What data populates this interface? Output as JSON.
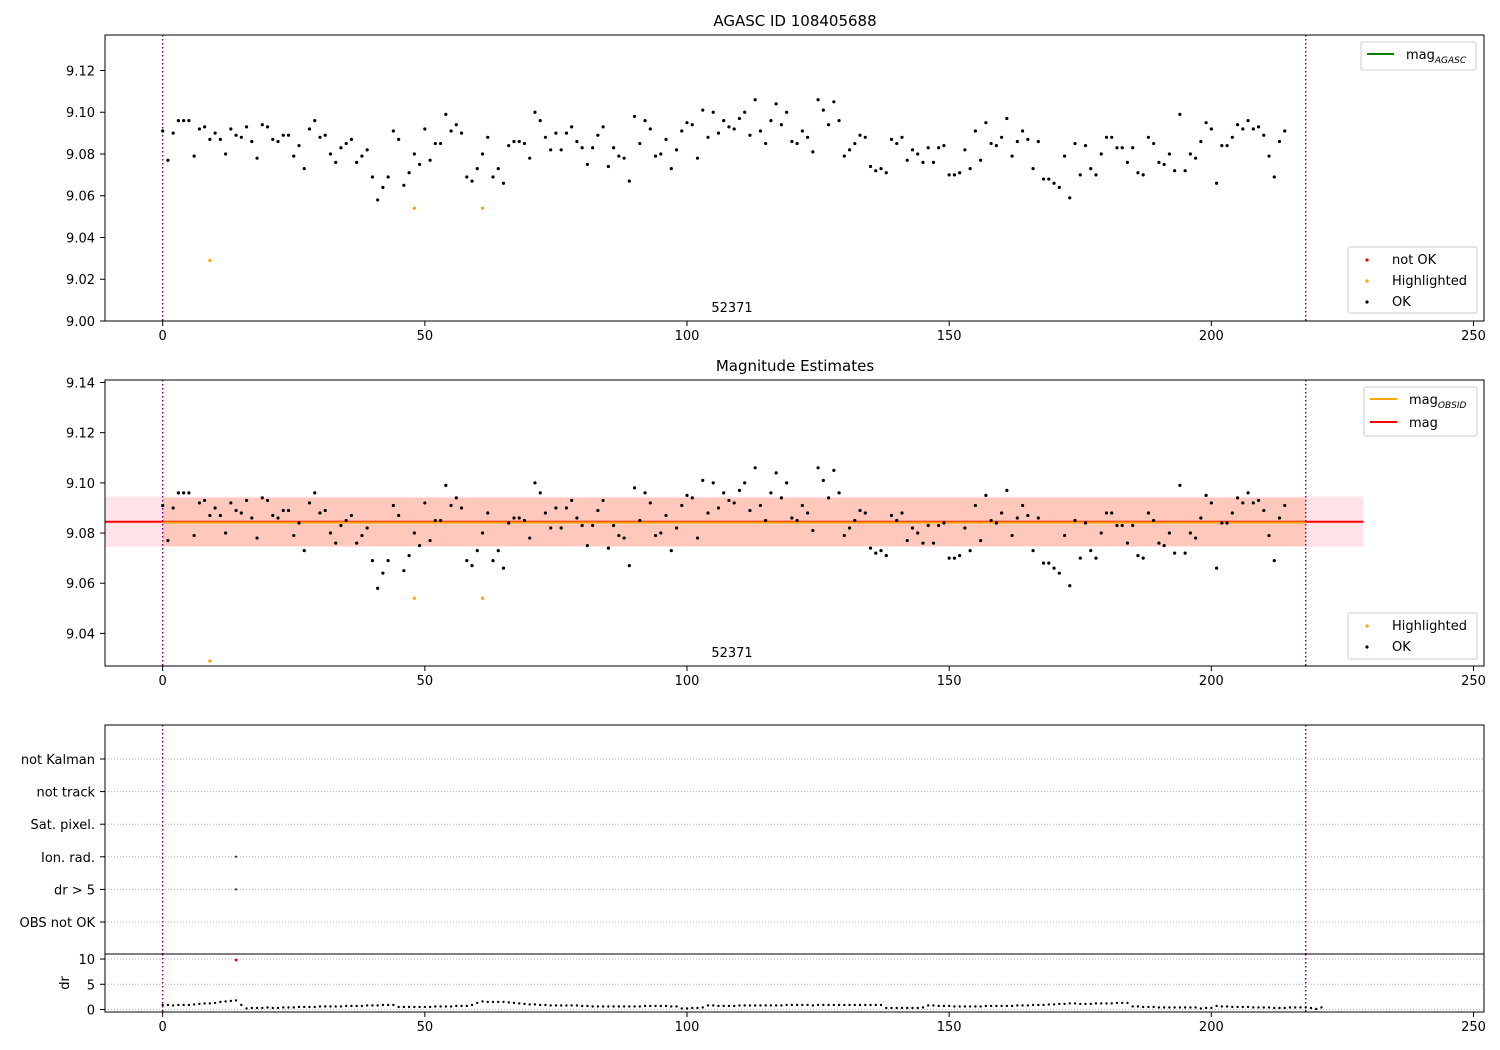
{
  "colors": {
    "ok": "#000000",
    "highlighted": "#ffa500",
    "not_ok": "#ff0000",
    "agasc_line": "#008000",
    "obsid_line": "#ffa500",
    "mag_line": "#ff0000",
    "obs_boundary": "#800080",
    "band_fill_pink": "#ffc0cb",
    "band_fill_orange": "#ffa07a"
  },
  "figure": {
    "obsid_label": "52371"
  },
  "chart_data": [
    {
      "type": "scatter",
      "title": "AGASC ID 108405688",
      "xlim": [
        -11,
        252
      ],
      "ylim": [
        9.0,
        9.137
      ],
      "xticks": [
        0,
        50,
        100,
        150,
        200,
        250
      ],
      "yticks": [
        9.0,
        9.02,
        9.04,
        9.06,
        9.08,
        9.1,
        9.12
      ],
      "ytick_labels": [
        "9.00",
        "9.02",
        "9.04",
        "9.06",
        "9.08",
        "9.10",
        "9.12"
      ],
      "obs_boundaries": [
        0,
        218
      ],
      "obsid_label_x": 109,
      "legend_lines": [
        {
          "label": "mag",
          "sub": "AGASC",
          "color": "#008000"
        }
      ],
      "legend_markers": [
        {
          "label": "not OK",
          "color": "#ff0000"
        },
        {
          "label": "Highlighted",
          "color": "#ffa500"
        },
        {
          "label": "OK",
          "color": "#000000"
        }
      ],
      "highlighted": [
        [
          9,
          9.029
        ],
        [
          48,
          9.054
        ],
        [
          61,
          9.054
        ]
      ],
      "ok_y": [
        9.091,
        9.077,
        9.09,
        9.096,
        9.096,
        9.096,
        9.079,
        9.092,
        9.093,
        9.087,
        9.09,
        9.087,
        9.08,
        9.092,
        9.089,
        9.088,
        9.093,
        9.086,
        9.078,
        9.094,
        9.093,
        9.087,
        9.086,
        9.089,
        9.089,
        9.079,
        9.084,
        9.073,
        9.092,
        9.096,
        9.088,
        9.089,
        9.08,
        9.076,
        9.083,
        9.085,
        9.087,
        9.076,
        9.079,
        9.082,
        9.069,
        9.058,
        9.064,
        9.069,
        9.091,
        9.087,
        9.065,
        9.071,
        9.08,
        9.075,
        9.092,
        9.077,
        9.085,
        9.085,
        9.099,
        9.091,
        9.094,
        9.09,
        9.069,
        9.067,
        9.073,
        9.08,
        9.088,
        9.069,
        9.073,
        9.066,
        9.084,
        9.086,
        9.086,
        9.085,
        9.078,
        9.1,
        9.096,
        9.088,
        9.082,
        9.09,
        9.082,
        9.09,
        9.093,
        9.086,
        9.083,
        9.075,
        9.083,
        9.089,
        9.093,
        9.074,
        9.083,
        9.079,
        9.078,
        9.067,
        9.098,
        9.085,
        9.096,
        9.092,
        9.079,
        9.08,
        9.087,
        9.073,
        9.082,
        9.091,
        9.095,
        9.094,
        9.078,
        9.101,
        9.088,
        9.1,
        9.09,
        9.096,
        9.093,
        9.092,
        9.097,
        9.1,
        9.089,
        9.106,
        9.091,
        9.085,
        9.096,
        9.104,
        9.094,
        9.1,
        9.086,
        9.085,
        9.091,
        9.088,
        9.081,
        9.106,
        9.101,
        9.094,
        9.105,
        9.096,
        9.079,
        9.082,
        9.085,
        9.089,
        9.088,
        9.074,
        9.072,
        9.073,
        9.071,
        9.087,
        9.085,
        9.088,
        9.077,
        9.082,
        9.08,
        9.076,
        9.083,
        9.076,
        9.083,
        9.084,
        9.07,
        9.07,
        9.071,
        9.082,
        9.073,
        9.091,
        9.077,
        9.095,
        9.085,
        9.084,
        9.088,
        9.097,
        9.079,
        9.086,
        9.091,
        9.087,
        9.073,
        9.086,
        9.068,
        9.068,
        9.066,
        9.064,
        9.079,
        9.059,
        9.085,
        9.07,
        9.084,
        9.073,
        9.07,
        9.08,
        9.088,
        9.088,
        9.083,
        9.083,
        9.076,
        9.083,
        9.071,
        9.07,
        9.088,
        9.085,
        9.076,
        9.075,
        9.08,
        9.072,
        9.099,
        9.072,
        9.08,
        9.078,
        9.086,
        9.095,
        9.092,
        9.066,
        9.084,
        9.084,
        9.088,
        9.094,
        9.092,
        9.096,
        9.092,
        9.093,
        9.089,
        9.079,
        9.069,
        9.086,
        9.091
      ]
    },
    {
      "type": "scatter",
      "title": "Magnitude Estimates",
      "xlim": [
        -11,
        252
      ],
      "ylim": [
        9.027,
        9.141
      ],
      "xticks": [
        0,
        50,
        100,
        150,
        200,
        250
      ],
      "yticks": [
        9.04,
        9.06,
        9.08,
        9.1,
        9.12,
        9.14
      ],
      "ytick_labels": [
        "9.04",
        "9.06",
        "9.08",
        "9.10",
        "9.12",
        "9.14"
      ],
      "obs_boundaries": [
        0,
        218
      ],
      "obsid_label_x": 109,
      "mag": 9.0845,
      "mag_band": [
        9.0745,
        9.0945
      ],
      "mag_band_x": [
        -11,
        229
      ],
      "mag_obsid": 9.0842,
      "mag_obsid_band": [
        9.0748,
        9.094
      ],
      "mag_obsid_band_x": [
        0,
        218
      ],
      "legend_lines": [
        {
          "label": "mag",
          "sub": "OBSID",
          "color": "#ffa500"
        },
        {
          "label": "mag",
          "sub": "",
          "color": "#ff0000"
        }
      ],
      "legend_markers": [
        {
          "label": "Highlighted",
          "color": "#ffa500"
        },
        {
          "label": "OK",
          "color": "#000000"
        }
      ]
    },
    {
      "type": "scatter",
      "xlim": [
        -11,
        252
      ],
      "xticks": [
        0,
        50,
        100,
        150,
        200,
        250
      ],
      "flag_labels": [
        "not Kalman",
        "not track",
        "Sat. pixel.",
        "Ion. rad.",
        "dr > 5",
        "OBS not OK"
      ],
      "flag_points": [
        {
          "flag": "Ion. rad.",
          "x": [
            14
          ]
        },
        {
          "flag": "dr > 5",
          "x": [
            14
          ]
        }
      ]
    },
    {
      "type": "scatter",
      "ylabel": "dr",
      "xlim": [
        -11,
        252
      ],
      "ylim": [
        -0.5,
        11
      ],
      "yticks": [
        0,
        5,
        10
      ],
      "ytick_labels": [
        "0",
        "5",
        "10"
      ],
      "xticks": [
        0,
        50,
        100,
        150,
        200,
        250
      ],
      "outlier": [
        14,
        9.8
      ],
      "dr_y": [
        0.9,
        0.9,
        0.8,
        0.9,
        0.9,
        0.9,
        1.0,
        1.1,
        1.2,
        1.2,
        1.3,
        1.5,
        1.6,
        1.7,
        1.8,
        0.9,
        0.2,
        0.3,
        0.3,
        0.3,
        0.4,
        0.3,
        0.3,
        0.4,
        0.4,
        0.4,
        0.5,
        0.5,
        0.5,
        0.5,
        0.6,
        0.6,
        0.6,
        0.6,
        0.6,
        0.7,
        0.7,
        0.7,
        0.7,
        0.8,
        0.8,
        0.8,
        0.9,
        0.9,
        0.9,
        0.5,
        0.5,
        0.5,
        0.5,
        0.5,
        0.5,
        0.5,
        0.6,
        0.6,
        0.6,
        0.6,
        0.7,
        0.7,
        0.7,
        0.9,
        1.3,
        1.6,
        1.5,
        1.5,
        1.5,
        1.5,
        1.4,
        1.3,
        1.2,
        1.1,
        1.0,
        1.0,
        0.9,
        0.9,
        0.8,
        0.8,
        0.8,
        0.8,
        0.8,
        0.8,
        0.7,
        0.7,
        0.6,
        0.6,
        0.6,
        0.6,
        0.6,
        0.6,
        0.6,
        0.6,
        0.6,
        0.6,
        0.7,
        0.7,
        0.7,
        0.7,
        0.7,
        0.6,
        0.6,
        0.2,
        0.2,
        0.3,
        0.3,
        0.4,
        0.8,
        0.8,
        0.7,
        0.7,
        0.7,
        0.7,
        0.8,
        0.8,
        0.8,
        0.8,
        0.8,
        0.8,
        0.8,
        0.8,
        0.8,
        0.9,
        0.9,
        0.9,
        0.9,
        0.9,
        0.8,
        0.9,
        0.9,
        0.9,
        0.9,
        0.9,
        0.9,
        0.9,
        0.9,
        0.9,
        0.9,
        0.9,
        0.9,
        0.9,
        0.3,
        0.3,
        0.3,
        0.3,
        0.3,
        0.3,
        0.3,
        0.4,
        0.8,
        0.8,
        0.7,
        0.7,
        0.7,
        0.6,
        0.6,
        0.6,
        0.6,
        0.6,
        0.6,
        0.7,
        0.7,
        0.7,
        0.7,
        0.7,
        0.7,
        0.8,
        0.8,
        0.8,
        0.9,
        0.9,
        0.9,
        1.0,
        1.0,
        1.1,
        1.1,
        1.2,
        1.2,
        1.1,
        1.1,
        1.1,
        1.2,
        1.2,
        1.2,
        1.2,
        1.3,
        1.3,
        1.3,
        0.6,
        0.6,
        0.5,
        0.5,
        0.5,
        0.4,
        0.4,
        0.4,
        0.4,
        0.4,
        0.4,
        0.4,
        0.4,
        0.2,
        0.3,
        0.3,
        0.7,
        0.6,
        0.6,
        0.5,
        0.5,
        0.5,
        0.5,
        0.4,
        0.4,
        0.4,
        0.4,
        0.3,
        0.3,
        0.3,
        0.4,
        0.4,
        0.4,
        0.4,
        0.3,
        0.1,
        0.4
      ]
    }
  ]
}
